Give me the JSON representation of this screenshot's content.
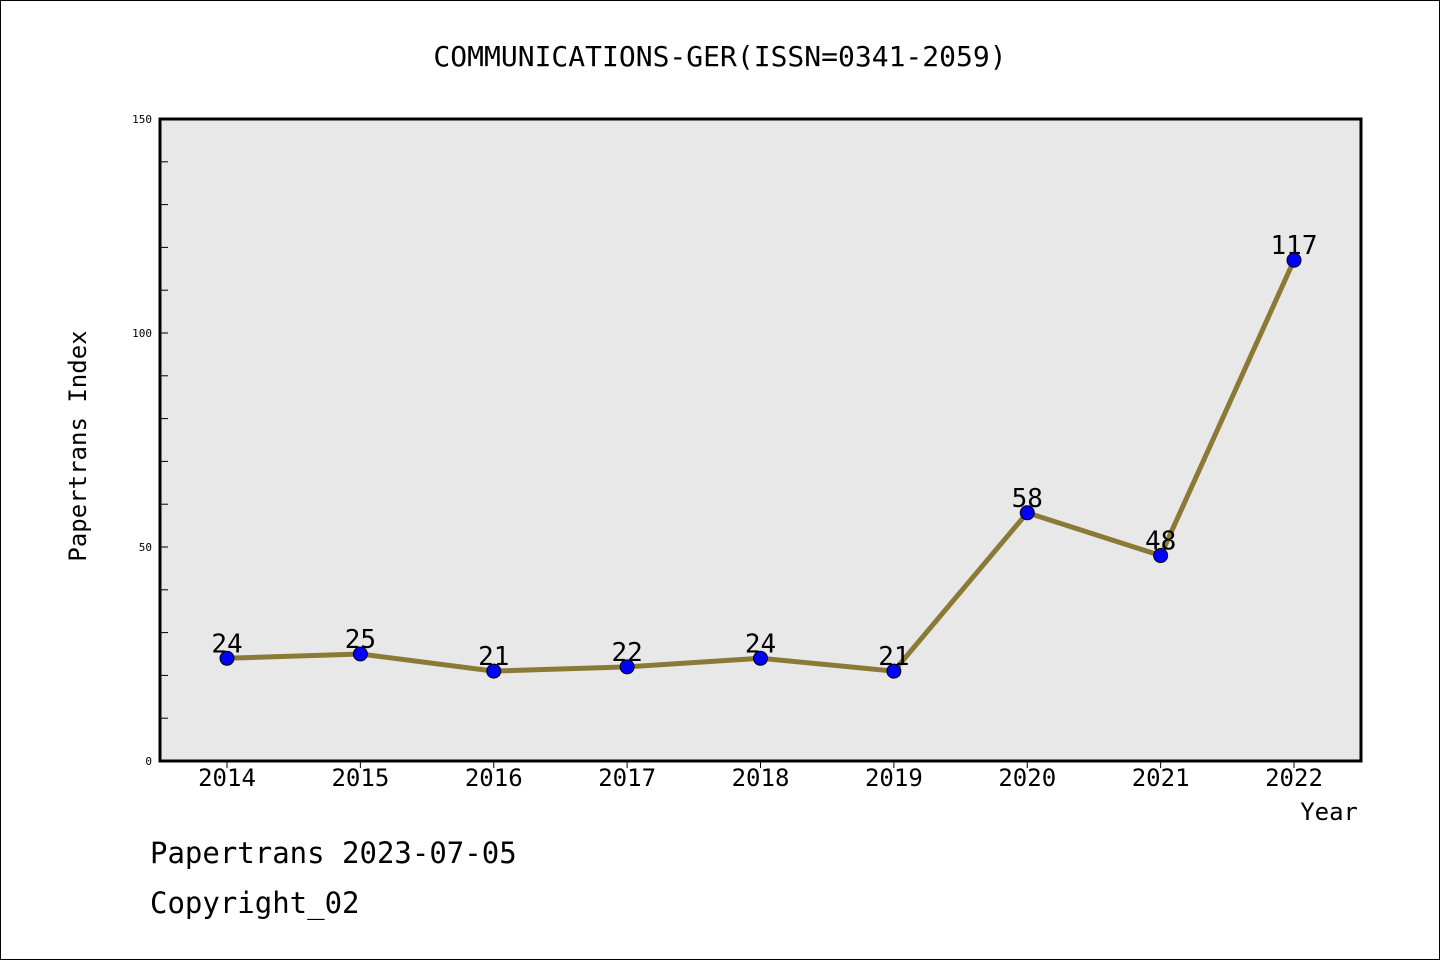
{
  "chart_data": {
    "type": "line",
    "title": "COMMUNICATIONS-GER(ISSN=0341-2059)",
    "xlabel": "Year",
    "ylabel": "Papertrans Index",
    "categories": [
      "2014",
      "2015",
      "2016",
      "2017",
      "2018",
      "2019",
      "2020",
      "2021",
      "2022"
    ],
    "series": [
      {
        "name": "Papertrans Index",
        "values": [
          24,
          25,
          21,
          22,
          24,
          21,
          58,
          48,
          117
        ]
      }
    ],
    "ylim": [
      0,
      150
    ],
    "yticks": [
      0,
      50,
      100,
      150
    ],
    "yminor_step": 10,
    "grid": false,
    "colors": {
      "line": "#8b7a35",
      "marker": "#0000ff",
      "background": "#e8e8e8"
    }
  },
  "footer": {
    "source": "Papertrans 2023-07-05",
    "copyright": "Copyright_02"
  }
}
